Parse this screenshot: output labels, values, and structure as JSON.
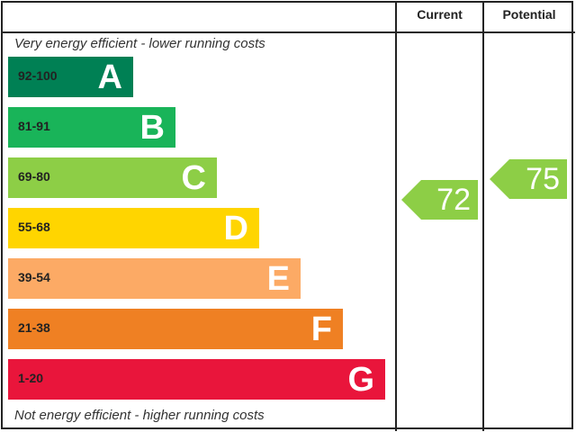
{
  "chart_data": {
    "type": "bar",
    "headers": {
      "current": "Current",
      "potential": "Potential"
    },
    "top_note": "Very energy efficient - lower running costs",
    "bottom_note": "Not energy efficient - higher running costs",
    "bands": [
      {
        "letter": "A",
        "range": "92-100",
        "color": "#008054"
      },
      {
        "letter": "B",
        "range": "81-91",
        "color": "#19b459"
      },
      {
        "letter": "C",
        "range": "69-80",
        "color": "#8dce46"
      },
      {
        "letter": "D",
        "range": "55-68",
        "color": "#ffd500"
      },
      {
        "letter": "E",
        "range": "39-54",
        "color": "#fcaa65"
      },
      {
        "letter": "F",
        "range": "21-38",
        "color": "#ef8023"
      },
      {
        "letter": "G",
        "range": "1-20",
        "color": "#e9153b"
      }
    ],
    "current": {
      "value": 72,
      "band": "C",
      "color": "#8dce46"
    },
    "potential": {
      "value": 75,
      "band": "C",
      "color": "#8dce46"
    }
  }
}
